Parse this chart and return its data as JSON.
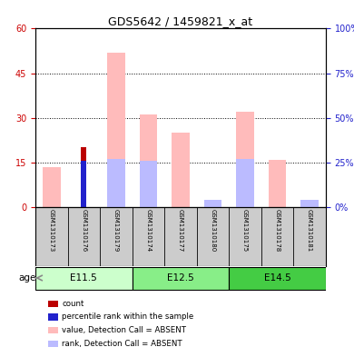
{
  "title": "GDS5642 / 1459821_x_at",
  "samples": [
    "GSM1310173",
    "GSM1310176",
    "GSM1310179",
    "GSM1310174",
    "GSM1310177",
    "GSM1310180",
    "GSM1310175",
    "GSM1310178",
    "GSM1310181"
  ],
  "age_groups": [
    {
      "label": "E11.5",
      "start": 0,
      "end": 3
    },
    {
      "label": "E12.5",
      "start": 3,
      "end": 6
    },
    {
      "label": "E14.5",
      "start": 6,
      "end": 9
    }
  ],
  "value_absent": [
    13.5,
    0,
    52,
    31,
    25,
    0,
    32,
    16,
    0
  ],
  "rank_absent": [
    0,
    0,
    27,
    26,
    0,
    4,
    27,
    0,
    4
  ],
  "count_val": [
    0,
    20,
    0,
    0,
    0,
    0,
    0,
    0,
    0
  ],
  "pct_rank_val": [
    0,
    26,
    0,
    0,
    0,
    0,
    0,
    0,
    0
  ],
  "left_ylim": [
    0,
    60
  ],
  "right_ylim": [
    0,
    100
  ],
  "left_yticks": [
    0,
    15,
    30,
    45,
    60
  ],
  "right_yticks": [
    0,
    25,
    50,
    75,
    100
  ],
  "color_value_absent": "#ffbbbb",
  "color_rank_absent": "#bbbbff",
  "color_count": "#bb0000",
  "color_pct_rank": "#2222cc",
  "age_color_light": "#ccffcc",
  "age_color_mid": "#88ee88",
  "age_color_dark": "#44cc44",
  "bg_color": "#ffffff",
  "tick_color_left": "#cc0000",
  "tick_color_right": "#2222cc",
  "sample_bg": "#cccccc",
  "legend_items": [
    {
      "color": "#bb0000",
      "label": "count"
    },
    {
      "color": "#2222cc",
      "label": "percentile rank within the sample"
    },
    {
      "color": "#ffbbbb",
      "label": "value, Detection Call = ABSENT"
    },
    {
      "color": "#bbbbff",
      "label": "rank, Detection Call = ABSENT"
    }
  ]
}
